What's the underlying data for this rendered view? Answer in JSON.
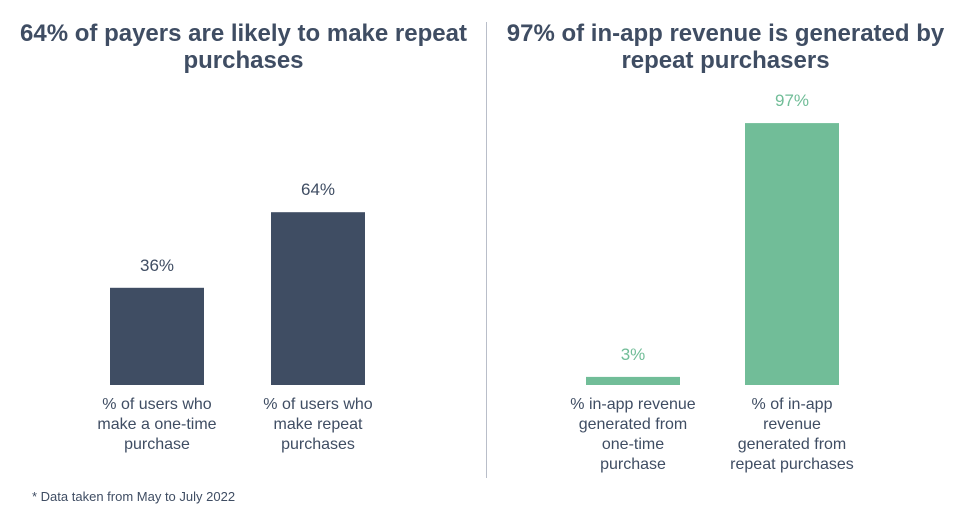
{
  "colors": {
    "dark": "#3f4d63",
    "green": "#71bd98",
    "text": "#3f4d63"
  },
  "chart_data": [
    {
      "type": "bar",
      "title": "64% of payers are likely to make repeat purchases",
      "categories": [
        "% of users who make a one-time purchase",
        "% of users who make repeat purchases"
      ],
      "values": [
        36,
        64
      ],
      "value_labels": [
        "36%",
        "64%"
      ],
      "unit": "%",
      "color": "#3f4d63",
      "ylim": [
        0,
        100
      ],
      "grid": false,
      "xlabel": "",
      "ylabel": ""
    },
    {
      "type": "bar",
      "title": "97% of in-app revenue is generated by repeat purchasers",
      "categories": [
        "% in-app revenue generated from one-time purchase",
        "% of in-app revenue generated from repeat purchases"
      ],
      "values": [
        3,
        97
      ],
      "value_labels": [
        "3%",
        "97%"
      ],
      "unit": "%",
      "color": "#71bd98",
      "ylim": [
        0,
        100
      ],
      "grid": false,
      "xlabel": "",
      "ylabel": ""
    }
  ],
  "footnote": "* Data taken from May to July 2022"
}
